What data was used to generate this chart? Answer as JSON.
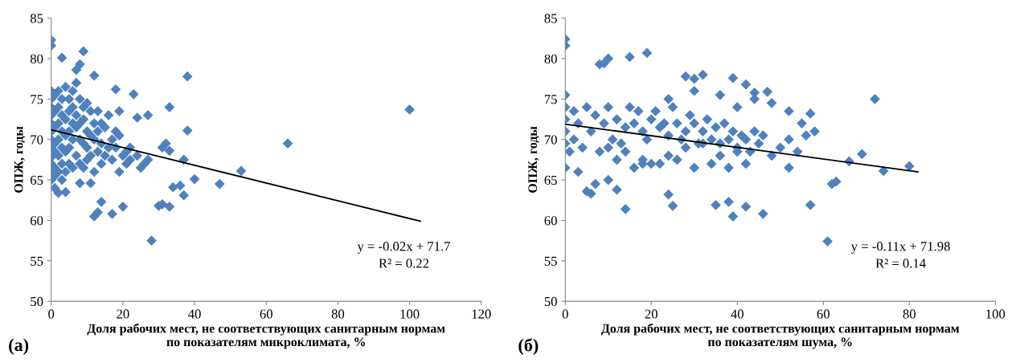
{
  "chart_data": [
    {
      "type": "scatter",
      "xlabel": "Доля рабочих мест, не соответствующих санитарным нормам\nпо показателям микроклимата, %",
      "ylabel": "ОПЖ, годы",
      "xlim": [
        0,
        120
      ],
      "ylim": [
        50,
        85
      ],
      "xticks": [
        0,
        20,
        40,
        60,
        80,
        100,
        120
      ],
      "yticks": [
        50,
        55,
        60,
        65,
        70,
        75,
        80,
        85
      ],
      "marker": "diamond",
      "grid": false,
      "legend": false,
      "annotations": [
        "y = -0.02x + 71.7",
        "R² = 0.22",
        "(а)"
      ],
      "series": [
        {
          "color": "#4f81bd",
          "x": [
            0,
            0,
            3,
            9,
            8,
            7,
            12,
            38,
            18,
            23,
            33,
            100,
            24,
            27,
            38,
            66,
            53,
            47,
            37,
            40,
            30,
            31,
            33,
            28,
            20,
            12,
            17,
            13,
            14,
            36,
            34,
            37,
            32,
            31,
            33,
            22,
            25,
            4,
            2,
            1,
            0,
            0,
            8,
            11,
            19,
            21,
            0,
            0,
            0,
            0,
            0,
            0,
            0,
            0,
            0,
            0,
            1,
            1,
            1,
            1,
            1,
            1,
            1,
            2,
            2,
            2,
            2,
            2,
            2,
            3,
            3,
            3,
            3,
            3,
            3,
            4,
            4,
            4,
            4,
            4,
            5,
            5,
            5,
            5,
            5,
            6,
            6,
            6,
            6,
            6,
            7,
            7,
            7,
            7,
            8,
            8,
            8,
            8,
            9,
            9,
            9,
            9,
            10,
            10,
            10,
            10,
            11,
            11,
            11,
            12,
            12,
            12,
            13,
            13,
            13,
            14,
            14,
            14,
            15,
            15,
            16,
            16,
            17,
            17,
            18,
            18,
            19,
            19,
            20,
            21,
            22,
            24,
            26,
            27
          ],
          "values": [
            82.3,
            81.6,
            80.1,
            80.9,
            79.3,
            78.6,
            77.9,
            77.8,
            76.2,
            75.6,
            74.0,
            73.7,
            72.7,
            73.0,
            71.1,
            69.5,
            66.1,
            64.5,
            63.1,
            65.1,
            61.8,
            62.0,
            61.7,
            57.5,
            61.7,
            60.5,
            60.8,
            61.0,
            62.3,
            64.3,
            64.1,
            67.5,
            69.5,
            69.0,
            68.6,
            67.5,
            66.5,
            63.5,
            63.4,
            64.0,
            65.0,
            66.0,
            64.6,
            64.6,
            66.0,
            68.5,
            76.0,
            75.0,
            74.0,
            73.0,
            72.0,
            71.0,
            70.0,
            69.0,
            67.0,
            67.8,
            75.5,
            73.5,
            71.5,
            69.5,
            68.5,
            66.5,
            65.5,
            76.0,
            74.0,
            72.0,
            70.0,
            68.0,
            66.0,
            75.0,
            73.0,
            71.0,
            69.0,
            67.0,
            65.0,
            76.5,
            72.5,
            70.5,
            68.5,
            66.0,
            75.0,
            73.5,
            71.0,
            69.0,
            67.0,
            76.0,
            74.0,
            72.0,
            70.0,
            66.5,
            77.0,
            73.0,
            71.5,
            68.0,
            75.0,
            72.0,
            70.0,
            67.0,
            74.0,
            72.5,
            69.5,
            66.5,
            74.5,
            71.0,
            69.0,
            67.5,
            73.5,
            70.5,
            68.0,
            72.0,
            70.0,
            66.0,
            73.5,
            71.0,
            68.5,
            72.0,
            69.5,
            67.0,
            71.5,
            68.0,
            73.0,
            69.0,
            70.0,
            67.5,
            71.0,
            69.0,
            73.5,
            70.5,
            68.0,
            67.0,
            69.0,
            68.0,
            67.0,
            67.5
          ]
        },
        {
          "type": "line",
          "color": "#000000",
          "marker": "none",
          "x": [
            0,
            103
          ],
          "values": [
            71.2,
            59.9
          ]
        }
      ]
    },
    {
      "type": "scatter",
      "xlabel": "Доля рабочих мест, не соответствующих санитарным нормам\nпо показателям шума, %",
      "ylabel": "ОПЖ, годы",
      "xlim": [
        0,
        100
      ],
      "ylim": [
        50,
        85
      ],
      "xticks": [
        0,
        20,
        40,
        60,
        80,
        100
      ],
      "yticks": [
        50,
        55,
        60,
        65,
        70,
        75,
        80,
        85
      ],
      "marker": "diamond",
      "grid": false,
      "legend": false,
      "annotations": [
        "y = -0.11x + 71.98",
        "R² = 0.14",
        "(б)"
      ],
      "series": [
        {
          "color": "#4f81bd",
          "x": [
            0,
            0,
            19,
            10,
            9,
            8,
            15,
            28,
            30,
            32,
            39,
            42,
            44,
            47,
            72,
            57,
            62,
            63,
            61,
            57,
            46,
            39,
            42,
            38,
            35,
            25,
            24,
            14,
            5,
            6,
            80,
            74,
            69,
            66,
            58,
            55,
            52,
            0,
            1,
            3,
            7,
            10,
            12,
            0,
            0,
            0,
            0,
            0,
            2,
            2,
            3,
            4,
            5,
            6,
            7,
            8,
            9,
            10,
            11,
            12,
            13,
            14,
            15,
            16,
            17,
            18,
            19,
            20,
            21,
            22,
            23,
            24,
            25,
            26,
            27,
            28,
            29,
            30,
            31,
            32,
            33,
            34,
            35,
            36,
            37,
            38,
            39,
            40,
            41,
            42,
            43,
            44,
            45,
            46,
            48,
            50,
            52,
            54,
            56,
            10,
            14,
            18,
            22,
            26,
            30,
            34,
            38,
            42,
            16,
            20,
            24,
            28,
            32,
            36,
            40,
            12,
            18,
            24,
            30,
            36,
            44,
            48,
            40,
            52
          ],
          "values": [
            82.4,
            81.6,
            80.7,
            80.0,
            79.4,
            79.3,
            80.2,
            77.8,
            77.5,
            78.0,
            77.6,
            76.8,
            75.8,
            75.9,
            75.0,
            73.2,
            64.5,
            64.8,
            57.4,
            61.9,
            60.8,
            60.5,
            61.7,
            62.3,
            61.9,
            61.8,
            63.2,
            61.4,
            63.6,
            63.3,
            66.7,
            66.1,
            68.2,
            67.3,
            71.0,
            72.0,
            66.5,
            66.5,
            68.5,
            66.0,
            64.5,
            65.0,
            63.8,
            75.5,
            74.0,
            72.5,
            71.0,
            69.5,
            73.5,
            70.0,
            72.0,
            69.0,
            74.0,
            71.0,
            73.0,
            68.5,
            72.0,
            74.0,
            70.0,
            72.5,
            69.5,
            71.5,
            74.0,
            72.0,
            73.5,
            71.0,
            70.0,
            72.5,
            73.5,
            71.5,
            72.0,
            70.5,
            74.0,
            72.0,
            70.0,
            71.0,
            73.0,
            72.0,
            69.5,
            71.0,
            72.5,
            70.0,
            71.5,
            69.5,
            72.0,
            70.0,
            71.0,
            69.0,
            70.5,
            70.0,
            68.5,
            71.0,
            69.5,
            70.5,
            68.0,
            69.0,
            70.0,
            68.5,
            70.5,
            69.0,
            68.5,
            67.5,
            67.0,
            67.5,
            66.5,
            67.0,
            66.5,
            67.0,
            66.5,
            67.0,
            68.0,
            69.0,
            69.5,
            68.0,
            68.5,
            67.5,
            67.0,
            75.0,
            76.0,
            75.5,
            75.0,
            74.5,
            74.0,
            73.5
          ]
        },
        {
          "type": "line",
          "color": "#000000",
          "marker": "none",
          "x": [
            0,
            82
          ],
          "values": [
            71.9,
            66.0
          ]
        }
      ]
    }
  ]
}
